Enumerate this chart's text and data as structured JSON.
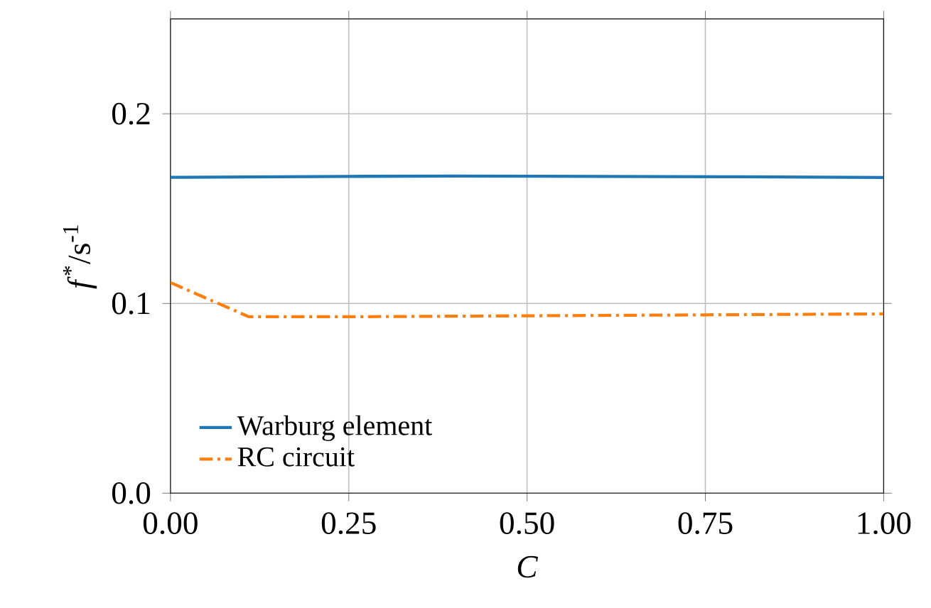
{
  "chart_data": {
    "type": "line",
    "xlabel": "*C*",
    "ylabel": "*f*$^{*}$/s$^{-1}$",
    "xlim": [
      0,
      1
    ],
    "ylim": [
      0,
      0.25
    ],
    "xticks": [
      {
        "value": 0,
        "label": "0.00"
      },
      {
        "value": 0.25,
        "label": "0.25"
      },
      {
        "value": 0.5,
        "label": "0.50"
      },
      {
        "value": 0.75,
        "label": "0.75"
      },
      {
        "value": 1,
        "label": "1.00"
      }
    ],
    "yticks": [
      {
        "value": 0,
        "label": "0.0"
      },
      {
        "value": 0.1,
        "label": "0.1"
      },
      {
        "value": 0.2,
        "label": "0.2"
      }
    ],
    "grid": true,
    "legend": "bottom left",
    "series": [
      {
        "name": "Warburg element",
        "color": "#1f77b4",
        "line_style": "solid",
        "x": [
          0,
          0.25,
          0.4,
          0.6,
          0.8,
          1
        ],
        "values": [
          0.1665,
          0.167,
          0.1672,
          0.167,
          0.1668,
          0.1664
        ]
      },
      {
        "name": "RC circuit",
        "color": "#ff7f0e",
        "line_style": "dashdot",
        "x": [
          0,
          0.11,
          0.25,
          0.5,
          0.75,
          1
        ],
        "values": [
          0.111,
          0.093,
          0.093,
          0.0935,
          0.094,
          0.0945
        ]
      }
    ]
  }
}
